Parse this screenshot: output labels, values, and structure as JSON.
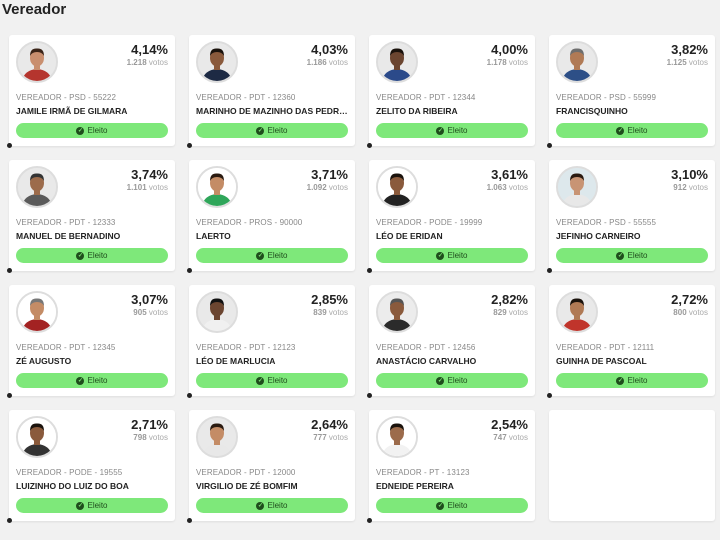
{
  "page": {
    "title": "Vereador"
  },
  "badge_label": "Eleito",
  "colors": {
    "badge_bg": "#7ee87a",
    "badge_text": "#1f4d1c"
  },
  "candidates": [
    {
      "pct": "4,14%",
      "votes": "1.218",
      "votes_unit": "votos",
      "meta": "VEREADOR - PSD - 55222",
      "name": "JAMILE IRMÃ DE GILMARA",
      "skin": "#c98f6f",
      "shirt": "#b5352e",
      "bg": "#e9e9e9",
      "hair": "#3a2418"
    },
    {
      "pct": "4,03%",
      "votes": "1.186",
      "votes_unit": "votos",
      "meta": "VEREADOR - PDT - 12360",
      "name": "MARINHO DE MAZINHO DAS PEDRAS",
      "skin": "#8a5a3c",
      "shirt": "#1d2a44",
      "bg": "#e9e9e9",
      "hair": "#1a120c"
    },
    {
      "pct": "4,00%",
      "votes": "1.178",
      "votes_unit": "votos",
      "meta": "VEREADOR - PDT - 12344",
      "name": "ZELITO DA RIBEIRA",
      "skin": "#6b4530",
      "shirt": "#2b4a8a",
      "bg": "#e9e9e9",
      "hair": "#1a120c"
    },
    {
      "pct": "3,82%",
      "votes": "1.125",
      "votes_unit": "votos",
      "meta": "VEREADOR - PSD - 55999",
      "name": "FRANCISQUINHO",
      "skin": "#b07a55",
      "shirt": "#2d4f87",
      "bg": "#e9e9e9",
      "hair": "#6e6e6e"
    },
    {
      "pct": "3,74%",
      "votes": "1.101",
      "votes_unit": "votos",
      "meta": "VEREADOR - PDT - 12333",
      "name": "MANUEL DE BERNADINO",
      "skin": "#9c6b4b",
      "shirt": "#5a5a5a",
      "bg": "#e9e9e9",
      "hair": "#333"
    },
    {
      "pct": "3,71%",
      "votes": "1.092",
      "votes_unit": "votos",
      "meta": "VEREADOR - PROS - 90000",
      "name": "LAERTO",
      "skin": "#c48c66",
      "shirt": "#2fa65a",
      "bg": "#ffffff",
      "hair": "#2a1a10"
    },
    {
      "pct": "3,61%",
      "votes": "1.063",
      "votes_unit": "votos",
      "meta": "VEREADOR - PODE - 19999",
      "name": "LÉO DE ERIDAN",
      "skin": "#8a5a3c",
      "shirt": "#222",
      "bg": "#ffffff",
      "hair": "#1a120c"
    },
    {
      "pct": "3,10%",
      "votes": "912",
      "votes_unit": "votos",
      "meta": "VEREADOR - PSD - 55555",
      "name": "JEFINHO CARNEIRO",
      "skin": "#c89474",
      "shirt": "#e8e8e8",
      "bg": "#dde8ec",
      "hair": "#2a1a10"
    },
    {
      "pct": "3,07%",
      "votes": "905",
      "votes_unit": "votos",
      "meta": "VEREADOR - PDT - 12345",
      "name": "ZÉ AUGUSTO",
      "skin": "#c48c66",
      "shirt": "#a32222",
      "bg": "#ffffff",
      "hair": "#777"
    },
    {
      "pct": "2,85%",
      "votes": "839",
      "votes_unit": "votos",
      "meta": "VEREADOR - PDT - 12123",
      "name": "LÉO DE MARLUCIA",
      "skin": "#6b4530",
      "shirt": "#f0f0f0",
      "bg": "#e9e9e9",
      "hair": "#111"
    },
    {
      "pct": "2,82%",
      "votes": "829",
      "votes_unit": "votos",
      "meta": "VEREADOR - PDT - 12456",
      "name": "ANASTÁCIO CARVALHO",
      "skin": "#8a5a3c",
      "shirt": "#2b2b2b",
      "bg": "#ececec",
      "hair": "#555"
    },
    {
      "pct": "2,72%",
      "votes": "800",
      "votes_unit": "votos",
      "meta": "VEREADOR - PDT - 12111",
      "name": "GUINHA DE PASCOAL",
      "skin": "#b07a55",
      "shirt": "#c0342b",
      "bg": "#e9e9e9",
      "hair": "#1a120c"
    },
    {
      "pct": "2,71%",
      "votes": "798",
      "votes_unit": "votos",
      "meta": "VEREADOR - PODE - 19555",
      "name": "LUIZINHO DO LUIZ DO BOA",
      "skin": "#8a5a3c",
      "shirt": "#333",
      "bg": "#ffffff",
      "hair": "#1a120c"
    },
    {
      "pct": "2,64%",
      "votes": "777",
      "votes_unit": "votos",
      "meta": "VEREADOR - PDT - 12000",
      "name": "VIRGILIO DE ZÉ BOMFIM",
      "skin": "#c48c66",
      "shirt": "#e8e8e8",
      "bg": "#e9e9e9",
      "hair": "#2a1a10"
    },
    {
      "pct": "2,54%",
      "votes": "747",
      "votes_unit": "votos",
      "meta": "VEREADOR - PT - 13123",
      "name": "EDNEIDE PEREIRA",
      "skin": "#9c6b4b",
      "shirt": "#f2f2f2",
      "bg": "#ffffff",
      "hair": "#1a120c"
    }
  ]
}
